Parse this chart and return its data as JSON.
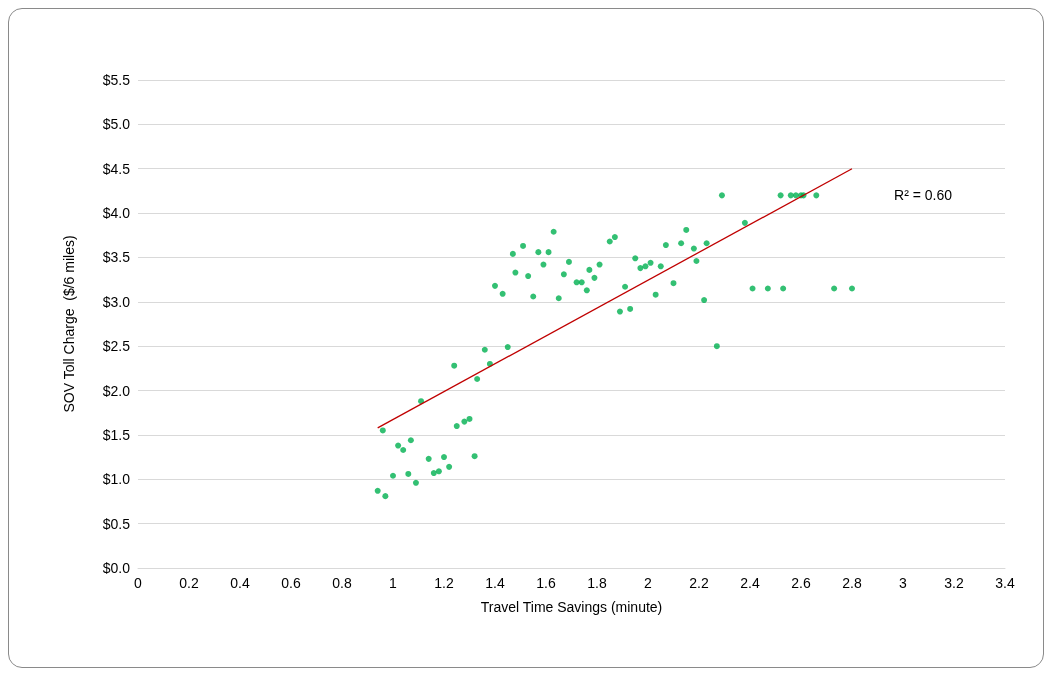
{
  "chart_data": {
    "type": "scatter",
    "xlabel": "Travel Time Savings (minute)",
    "ylabel": "SOV Toll Charge  ($/6 miles)",
    "xlim": [
      0,
      3.4
    ],
    "xticks": [
      0,
      0.2,
      0.4,
      0.6,
      0.8,
      1,
      1.2,
      1.4,
      1.6,
      1.8,
      2,
      2.2,
      2.4,
      2.6,
      2.8,
      3,
      3.2,
      3.4
    ],
    "ylim": [
      0,
      5.5
    ],
    "yticks": [
      {
        "value": 0,
        "label": "$0.0"
      },
      {
        "value": 0.5,
        "label": "$0.5"
      },
      {
        "value": 1,
        "label": "$1.0"
      },
      {
        "value": 1.5,
        "label": "$1.5"
      },
      {
        "value": 2,
        "label": "$2.0"
      },
      {
        "value": 2.5,
        "label": "$2.5"
      },
      {
        "value": 3,
        "label": "$3.0"
      },
      {
        "value": 3.5,
        "label": "$3.5"
      },
      {
        "value": 4,
        "label": "$4.0"
      },
      {
        "value": 4.5,
        "label": "$4.5"
      },
      {
        "value": 5,
        "label": "$5.0"
      },
      {
        "value": 5.5,
        "label": "$5.5"
      }
    ],
    "grid": "y",
    "marker": "circle",
    "annotations": [
      "R² = 0.60"
    ],
    "series": [
      {
        "type": "scatter",
        "color": "#00b050",
        "x": [
          0.94,
          0.97,
          0.96,
          1.0,
          1.02,
          1.04,
          1.06,
          1.07,
          1.09,
          1.11,
          1.14,
          1.16,
          1.18,
          1.2,
          1.22,
          1.24,
          1.25,
          1.28,
          1.3,
          1.32,
          1.33,
          1.36,
          1.38,
          1.4,
          1.43,
          1.45,
          1.47,
          1.48,
          1.51,
          1.53,
          1.55,
          1.57,
          1.59,
          1.61,
          1.63,
          1.65,
          1.67,
          1.69,
          1.72,
          1.74,
          1.76,
          1.77,
          1.79,
          1.81,
          1.85,
          1.87,
          1.89,
          1.91,
          1.93,
          1.95,
          1.97,
          1.99,
          2.01,
          2.03,
          2.05,
          2.07,
          2.1,
          2.13,
          2.15,
          2.18,
          2.19,
          2.22,
          2.23,
          2.27,
          2.29,
          2.38,
          2.41,
          2.47,
          2.52,
          2.53,
          2.56,
          2.58,
          2.6,
          2.61,
          2.66,
          2.73,
          2.8
        ],
        "values": [
          0.87,
          0.81,
          1.55,
          1.04,
          1.38,
          1.33,
          1.06,
          1.44,
          0.96,
          1.88,
          1.23,
          1.07,
          1.09,
          1.25,
          1.14,
          2.28,
          1.6,
          1.65,
          1.68,
          1.26,
          2.13,
          2.46,
          2.3,
          3.18,
          3.09,
          2.49,
          3.54,
          3.33,
          3.63,
          3.29,
          3.06,
          3.56,
          3.42,
          3.56,
          3.79,
          3.04,
          3.31,
          3.45,
          3.22,
          3.22,
          3.13,
          3.36,
          3.27,
          3.42,
          3.68,
          3.73,
          2.89,
          3.17,
          2.92,
          3.49,
          3.38,
          3.4,
          3.44,
          3.08,
          3.4,
          3.64,
          3.21,
          3.66,
          3.81,
          3.6,
          3.46,
          3.02,
          3.66,
          2.5,
          4.2,
          3.89,
          3.15,
          3.15,
          4.2,
          3.15,
          4.2,
          4.2,
          4.2,
          4.2,
          4.2,
          3.15,
          3.15
        ]
      },
      {
        "type": "line",
        "color": "#c00000",
        "marker": "none",
        "line_style": "solid",
        "x": [
          0.94,
          2.8
        ],
        "values": [
          1.58,
          4.5
        ]
      }
    ]
  }
}
